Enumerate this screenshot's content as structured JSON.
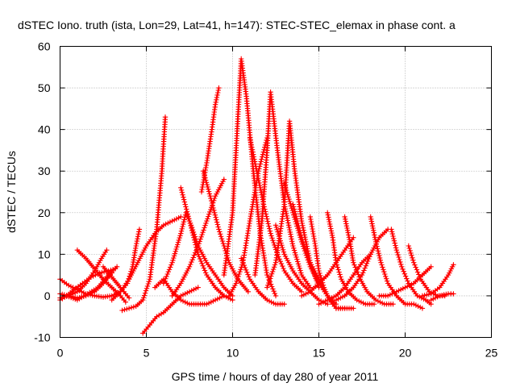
{
  "chart_data": {
    "type": "line",
    "title": "dSTEC Iono. truth (ista, Lon=29, Lat=41, h=147): STEC-STEC_elemax in phase cont. a",
    "xlabel": "GPS time / hours of day 280 of year 2011",
    "ylabel": "dSTEC  / TECUs",
    "xlim": [
      0,
      25
    ],
    "ylim": [
      -10,
      60
    ],
    "xticks": [
      0,
      5,
      10,
      15,
      20,
      25
    ],
    "yticks": [
      -10,
      0,
      10,
      20,
      30,
      40,
      50,
      60
    ],
    "grid": true,
    "marker": "+",
    "color": "#ff0000",
    "series": [
      {
        "x": [
          0.0,
          0.5,
          1.0,
          1.5,
          2.0,
          2.5,
          3.0,
          3.5,
          3.9,
          4.2,
          4.4,
          4.6
        ],
        "y": [
          4,
          2.5,
          1.5,
          0.5,
          0,
          -0.3,
          0,
          1,
          3,
          7,
          12,
          16
        ]
      },
      {
        "x": [
          0.0,
          0.4,
          0.8,
          1.3,
          1.8,
          2.3,
          2.8,
          3.2
        ],
        "y": [
          -1,
          0,
          1.5,
          3,
          4.5,
          5.5,
          6,
          6.5
        ]
      },
      {
        "x": [
          0.0,
          0.5,
          1.0,
          1.5,
          2.0,
          2.5,
          3.0
        ],
        "y": [
          0.5,
          0,
          -0.5,
          0,
          1,
          3,
          5.5
        ]
      },
      {
        "x": [
          0.0,
          0.5,
          1.0,
          1.5,
          2.0,
          2.4,
          2.7
        ],
        "y": [
          -0.5,
          0,
          1,
          3,
          6,
          9,
          11
        ]
      },
      {
        "x": [
          1.0,
          1.5,
          2.0,
          2.5,
          3.0,
          3.5,
          3.8
        ],
        "y": [
          11,
          9,
          6.5,
          4,
          2,
          0,
          -1.5
        ]
      },
      {
        "x": [
          0.4,
          1.0,
          1.6,
          2.2,
          2.8,
          3.3
        ],
        "y": [
          0,
          -1,
          0.5,
          2,
          5,
          7
        ]
      },
      {
        "x": [
          2.5,
          3.0,
          3.5,
          3.8,
          4.0
        ],
        "y": [
          7,
          4.5,
          2,
          0.5,
          -0.5
        ]
      },
      {
        "x": [
          3.6,
          4.0,
          4.4,
          4.8,
          5.2,
          5.6,
          5.9,
          6.1
        ],
        "y": [
          -3.5,
          -3,
          -2.5,
          -1,
          4,
          16,
          30,
          43
        ]
      },
      {
        "x": [
          3.0,
          3.5,
          4.0,
          4.5,
          5.0,
          5.5,
          6.0,
          6.5,
          7.0
        ],
        "y": [
          -1,
          1,
          4,
          8,
          12,
          15,
          17,
          18,
          19
        ]
      },
      {
        "x": [
          4.8,
          5.2,
          5.6,
          6.0,
          6.5,
          7.0,
          7.5,
          8.0
        ],
        "y": [
          -9,
          -7,
          -5,
          -4,
          -2,
          0,
          1,
          2
        ]
      },
      {
        "x": [
          5.5,
          6.0,
          6.5,
          7.0,
          7.5,
          8.0,
          8.5,
          9.0,
          9.5
        ],
        "y": [
          2,
          4,
          1,
          -1,
          -2,
          -2,
          -2,
          -1,
          0
        ]
      },
      {
        "x": [
          6.0,
          6.5,
          7.0,
          7.3,
          7.6,
          8.0,
          8.5,
          9.0,
          9.5,
          10.0
        ],
        "y": [
          3,
          8,
          15,
          20,
          17,
          12,
          8,
          5,
          2,
          0
        ]
      },
      {
        "x": [
          6.5,
          7.0,
          7.5,
          8.0,
          8.5,
          9.0,
          9.5
        ],
        "y": [
          0,
          3,
          7,
          12,
          18,
          24,
          28
        ]
      },
      {
        "x": [
          7.0,
          7.5,
          8.0,
          8.5,
          9.0,
          9.5,
          10.0
        ],
        "y": [
          26,
          18,
          10,
          5,
          2,
          0,
          -1
        ]
      },
      {
        "x": [
          8.2,
          8.5,
          8.8,
          9.0,
          9.2
        ],
        "y": [
          25,
          32,
          40,
          46,
          50
        ]
      },
      {
        "x": [
          8.3,
          8.7,
          9.2,
          9.8,
          10.3,
          10.9
        ],
        "y": [
          30,
          24,
          16,
          8,
          4,
          1
        ]
      },
      {
        "x": [
          9.5,
          10.0,
          10.2,
          10.5,
          10.8,
          11.2,
          11.6,
          12.0,
          12.5
        ],
        "y": [
          5,
          20,
          35,
          57,
          48,
          30,
          15,
          5,
          0
        ]
      },
      {
        "x": [
          9.8,
          10.2,
          10.6,
          11.0,
          11.5,
          12.0
        ],
        "y": [
          0,
          3,
          8,
          18,
          30,
          38
        ]
      },
      {
        "x": [
          10.5,
          11.0,
          11.5,
          12.0,
          12.5,
          13.0
        ],
        "y": [
          9,
          4,
          1,
          -1,
          -2,
          -2
        ]
      },
      {
        "x": [
          11.0,
          11.4,
          11.8,
          12.2,
          12.6,
          13.0,
          13.5,
          14.0
        ],
        "y": [
          38,
          30,
          22,
          15,
          10,
          6,
          3,
          1
        ]
      },
      {
        "x": [
          11.3,
          11.7,
          12.0,
          12.2,
          12.6,
          13.0,
          13.5,
          14.0,
          14.5
        ],
        "y": [
          5,
          18,
          35,
          49,
          35,
          22,
          12,
          5,
          2
        ]
      },
      {
        "x": [
          12.0,
          12.5,
          13.0,
          13.3,
          13.6,
          14.0,
          14.5,
          15.0
        ],
        "y": [
          2,
          8,
          22,
          42,
          30,
          18,
          8,
          2
        ]
      },
      {
        "x": [
          12.5,
          13.0,
          13.5,
          14.0,
          14.5,
          15.0,
          15.5
        ],
        "y": [
          17,
          10,
          6,
          3,
          1,
          -1,
          -2
        ]
      },
      {
        "x": [
          13.0,
          13.5,
          14.0,
          14.5,
          15.0,
          15.5,
          16.0
        ],
        "y": [
          27,
          20,
          13,
          7,
          3,
          0,
          -2
        ]
      },
      {
        "x": [
          13.5,
          14.0,
          14.5,
          15.0,
          15.5,
          16.0,
          16.5
        ],
        "y": [
          22,
          14,
          8,
          4,
          0,
          -3,
          -3
        ]
      },
      {
        "x": [
          14.5,
          14.8,
          15.0,
          15.3,
          15.6,
          16.0,
          16.5,
          17.0
        ],
        "y": [
          19,
          12,
          6,
          2,
          -1,
          -3,
          -3,
          -3
        ]
      },
      {
        "x": [
          15.5,
          15.8,
          16.0,
          16.3,
          16.7,
          17.2,
          17.7,
          18.2
        ],
        "y": [
          20,
          14,
          8,
          4,
          1,
          -1,
          -2,
          -2
        ]
      },
      {
        "x": [
          16.5,
          16.8,
          17.0,
          17.4,
          17.8,
          18.3,
          18.8,
          19.3
        ],
        "y": [
          19,
          13,
          8,
          4,
          1,
          -1,
          -2,
          -2
        ]
      },
      {
        "x": [
          14.0,
          14.5,
          15.0,
          15.5,
          16.0,
          16.5,
          17.0
        ],
        "y": [
          0,
          1,
          3,
          5,
          8,
          11,
          14
        ]
      },
      {
        "x": [
          15.0,
          15.5,
          16.0,
          16.5,
          17.0,
          17.5,
          18.0
        ],
        "y": [
          -2,
          -1,
          0,
          2,
          5,
          8,
          10
        ]
      },
      {
        "x": [
          16.0,
          16.5,
          17.0,
          17.5,
          18.0,
          18.5,
          19.0
        ],
        "y": [
          -1,
          0,
          2,
          5,
          10,
          14,
          16
        ]
      },
      {
        "x": [
          18.0,
          18.3,
          18.6,
          19.0,
          19.5,
          20.0,
          20.5,
          21.0
        ],
        "y": [
          19,
          13,
          8,
          3,
          0,
          -2,
          -2,
          -3
        ]
      },
      {
        "x": [
          19.2,
          19.5,
          19.8,
          20.2,
          20.7,
          21.2,
          21.5
        ],
        "y": [
          16,
          11,
          7,
          3,
          0,
          -1,
          -2
        ]
      },
      {
        "x": [
          20.2,
          20.5,
          20.9,
          21.4,
          21.9,
          22.3
        ],
        "y": [
          12,
          8,
          4,
          1,
          0,
          0
        ]
      },
      {
        "x": [
          18.5,
          19.0,
          19.5,
          20.0,
          20.5,
          21.0,
          21.5
        ],
        "y": [
          0,
          0,
          1,
          2,
          3,
          5,
          7
        ]
      },
      {
        "x": [
          21.0,
          21.5,
          22.0,
          22.5,
          22.8
        ],
        "y": [
          0,
          0.5,
          2,
          5,
          7.5
        ]
      },
      {
        "x": [
          21.5,
          22.0,
          22.5,
          22.8
        ],
        "y": [
          -1,
          0,
          0.5,
          0.5
        ]
      }
    ]
  }
}
